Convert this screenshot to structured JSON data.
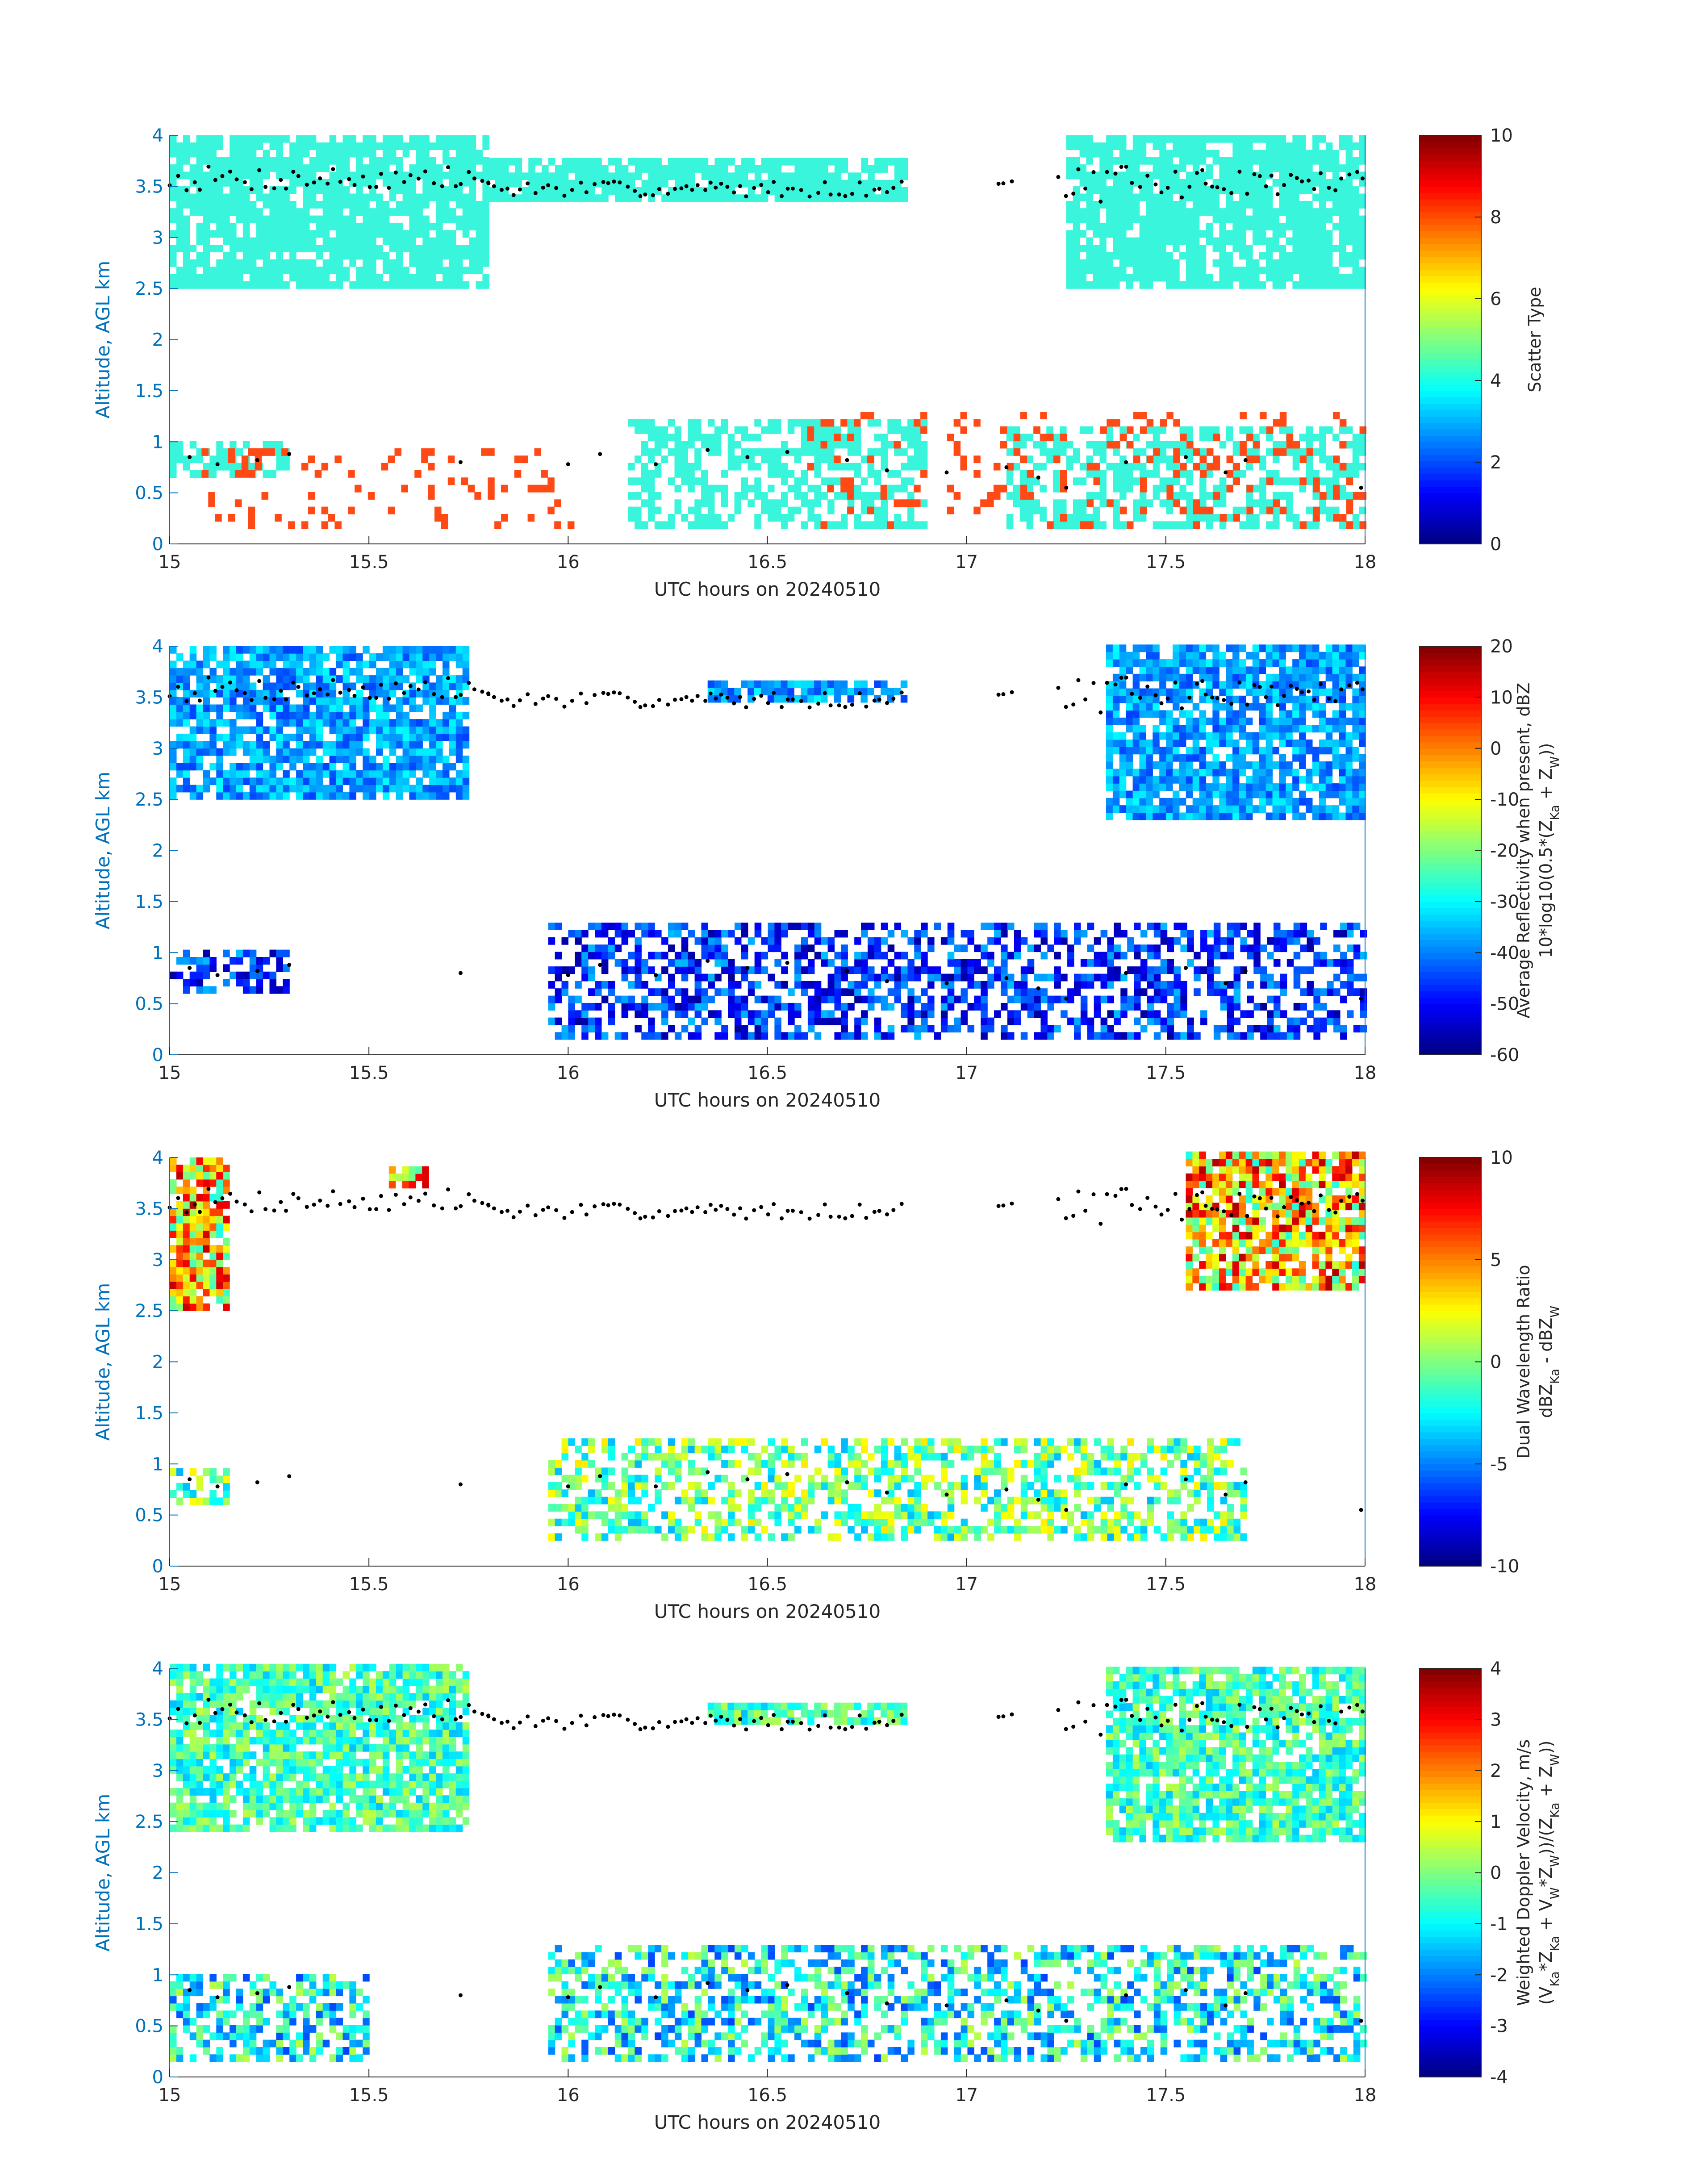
{
  "figure": {
    "theme": {
      "axis_color": "#0072BD",
      "text_color": "#262626",
      "scatter_color": "#38F5DC",
      "precip_color": "#FF4A16",
      "marker_color": "#000000"
    },
    "colormap": "jet"
  },
  "chart_data": [
    {
      "type": "heatmap",
      "panel": 1,
      "xlabel": "UTC hours on 20240510",
      "ylabel": "Altitude, AGL km",
      "xlim": [
        15,
        18
      ],
      "ylim": [
        0,
        4
      ],
      "xticks": [
        "15",
        "15.5",
        "16",
        "16.5",
        "17",
        "17.5",
        "18"
      ],
      "yticks": [
        "0",
        "0.5",
        "1",
        "1.5",
        "2",
        "2.5",
        "3",
        "3.5",
        "4"
      ],
      "colorbar": {
        "label_lines": [
          "Scatter Type"
        ],
        "range": [
          0,
          10
        ],
        "ticks": [
          "0",
          "2",
          "4",
          "6",
          "8",
          "10"
        ]
      },
      "fields": {
        "upper_layer": {
          "value": 4,
          "extent": [
            [
              15.0,
              15.8,
              2.5,
              4.0
            ],
            [
              15.8,
              16.85,
              3.35,
              3.75
            ],
            [
              17.25,
              18.0,
              2.5,
              4.0
            ]
          ]
        },
        "lower_layer": {
          "value": 4,
          "extent": [
            [
              15.0,
              15.3,
              0.65,
              0.95
            ],
            [
              16.15,
              16.9,
              0.15,
              1.2
            ],
            [
              17.1,
              18.0,
              0.15,
              1.15
            ]
          ]
        },
        "precip_patches": {
          "value": 9.5,
          "extent": [
            [
              15.08,
              16.0,
              0.15,
              0.9
            ],
            [
              16.6,
              18.0,
              0.15,
              1.25
            ]
          ]
        }
      },
      "cloud_top_markers": true
    },
    {
      "type": "heatmap",
      "panel": 2,
      "xlabel": "UTC hours on 20240510",
      "ylabel": "Altitude, AGL km",
      "xlim": [
        15,
        18
      ],
      "ylim": [
        0,
        4
      ],
      "xticks": [
        "15",
        "15.5",
        "16",
        "16.5",
        "17",
        "17.5",
        "18"
      ],
      "yticks": [
        "0",
        "0.5",
        "1",
        "1.5",
        "2",
        "2.5",
        "3",
        "3.5",
        "4"
      ],
      "colorbar": {
        "label_lines": [
          "Average Reflectivity when present, dBZ",
          "10*log10(0.5*(Z_{Ka} + Z_W))"
        ],
        "range": [
          -60,
          20
        ],
        "ticks": [
          "-60",
          "-50",
          "-40",
          "-30",
          "-20",
          "-10",
          "0",
          "10",
          "20"
        ]
      },
      "fields": {
        "upper_layer": {
          "value_range": [
            -45,
            -30
          ],
          "extent": [
            [
              15.0,
              15.75,
              2.5,
              4.0
            ],
            [
              16.35,
              16.85,
              3.45,
              3.65
            ],
            [
              17.35,
              18.0,
              2.3,
              4.0
            ]
          ]
        },
        "lower_layer": {
          "value_range": [
            -58,
            -35
          ],
          "extent": [
            [
              15.0,
              15.3,
              0.6,
              1.0
            ],
            [
              15.95,
              18.0,
              0.15,
              1.25
            ]
          ]
        }
      },
      "cloud_top_markers": true
    },
    {
      "type": "heatmap",
      "panel": 3,
      "xlabel": "UTC hours on 20240510",
      "ylabel": "Altitude, AGL km",
      "xlim": [
        15,
        18
      ],
      "ylim": [
        0,
        4
      ],
      "xticks": [
        "15",
        "15.5",
        "16",
        "16.5",
        "17",
        "17.5",
        "18"
      ],
      "yticks": [
        "0",
        "0.5",
        "1",
        "1.5",
        "2",
        "2.5",
        "3",
        "3.5",
        "4"
      ],
      "colorbar": {
        "label_lines": [
          "Dual Wavelength Ratio",
          "dBZ_{Ka} - dBZ_W"
        ],
        "range": [
          -10,
          10
        ],
        "ticks": [
          "-10",
          "-5",
          "0",
          "5",
          "10"
        ]
      },
      "fields": {
        "upper_layer": {
          "value_range": [
            -2,
            9
          ],
          "extent": [
            [
              15.0,
              15.15,
              2.5,
              4.0
            ],
            [
              15.55,
              15.65,
              3.7,
              3.9
            ],
            [
              17.55,
              18.0,
              2.7,
              4.0
            ]
          ]
        },
        "lower_layer": {
          "value_range": [
            -4,
            3
          ],
          "extent": [
            [
              15.0,
              15.15,
              0.6,
              0.95
            ],
            [
              15.95,
              17.7,
              0.25,
              1.2
            ]
          ]
        }
      },
      "cloud_top_markers": true
    },
    {
      "type": "heatmap",
      "panel": 4,
      "xlabel": "UTC hours on 20240510",
      "ylabel": "Altitude, AGL km",
      "xlim": [
        15,
        18
      ],
      "ylim": [
        0,
        4
      ],
      "xticks": [
        "15",
        "15.5",
        "16",
        "16.5",
        "17",
        "17.5",
        "18"
      ],
      "yticks": [
        "0",
        "0.5",
        "1",
        "1.5",
        "2",
        "2.5",
        "3",
        "3.5",
        "4"
      ],
      "colorbar": {
        "label_lines": [
          "Weighted Doppler Velocity, m/s",
          "(V_{Ka}*Z_{Ka} + V_W*Z_W))/(Z_{Ka} + Z_W))"
        ],
        "range": [
          -4,
          4
        ],
        "ticks": [
          "-4",
          "-3",
          "-2",
          "-1",
          "0",
          "1",
          "2",
          "3",
          "4"
        ]
      },
      "fields": {
        "upper_layer": {
          "value_range": [
            -1.5,
            0.5
          ],
          "extent": [
            [
              15.0,
              15.75,
              2.4,
              4.0
            ],
            [
              16.35,
              16.85,
              3.45,
              3.65
            ],
            [
              17.35,
              18.0,
              2.3,
              4.0
            ]
          ]
        },
        "lower_layer": {
          "value_range": [
            -2.5,
            0.5
          ],
          "extent": [
            [
              15.0,
              15.5,
              0.15,
              1.0
            ],
            [
              15.95,
              18.0,
              0.15,
              1.25
            ]
          ]
        }
      },
      "cloud_top_markers": true
    }
  ]
}
